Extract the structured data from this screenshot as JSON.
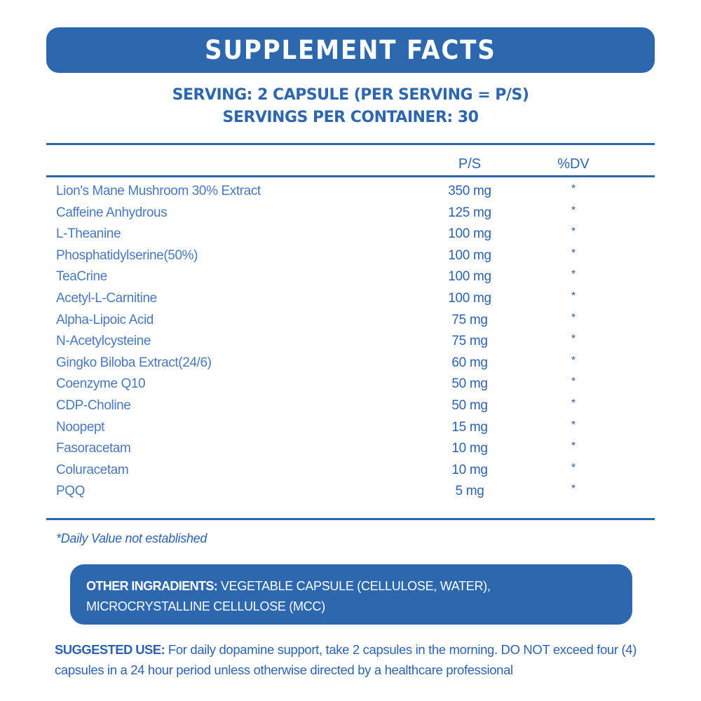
{
  "header": {
    "title": "SUPPLEMENT FACTS"
  },
  "serving": {
    "line1": "SERVING: 2 CAPSULE (PER SERVING = P/S)",
    "line2": "SERVINGS PER CONTAINER: 30"
  },
  "table": {
    "columns": [
      "",
      "P/S",
      "%DV"
    ],
    "rows": [
      {
        "name": "Lion's Mane Mushroom 30% Extract",
        "amount": "350 mg",
        "dv": "*"
      },
      {
        "name": "Caffeine Anhydrous",
        "amount": "125 mg",
        "dv": "*"
      },
      {
        "name": "L-Theanine",
        "amount": "100 mg",
        "dv": "*"
      },
      {
        "name": "Phosphatidylserine(50%)",
        "amount": "100 mg",
        "dv": "*"
      },
      {
        "name": "TeaCrine",
        "amount": "100 mg",
        "dv": "*"
      },
      {
        "name": "Acetyl-L-Carnitine",
        "amount": "100 mg",
        "dv": "*"
      },
      {
        "name": "Alpha-Lipoic Acid",
        "amount": "75 mg",
        "dv": "*"
      },
      {
        "name": "N-Acetylcysteine",
        "amount": "75 mg",
        "dv": "*"
      },
      {
        "name": "Gingko Biloba Extract(24/6)",
        "amount": "60 mg",
        "dv": "*"
      },
      {
        "name": "Coenzyme Q10",
        "amount": "50 mg",
        "dv": "*"
      },
      {
        "name": "CDP-Choline",
        "amount": "50 mg",
        "dv": "*"
      },
      {
        "name": "Noopept",
        "amount": "15 mg",
        "dv": "*"
      },
      {
        "name": "Fasoracetam",
        "amount": "10 mg",
        "dv": "*"
      },
      {
        "name": "Coluracetam",
        "amount": "10 mg",
        "dv": "*"
      },
      {
        "name": "PQQ",
        "amount": "5 mg",
        "dv": "*"
      }
    ]
  },
  "footnote": "*Daily Value not established",
  "other_ingredients": {
    "label": "OTHER INGRADIENTS:",
    "text": " VEGETABLE CAPSULE (CELLULOSE, WATER), MICROCRYSTALLINE CELLULOSE (MCC)"
  },
  "suggested_use": {
    "label": "SUGGESTED USE:",
    "text": " For daily dopamine support, take 2 capsules in the morning. DO NOT exceed four (4) capsules in a 24 hour period unless otherwise directed by a healthcare professional"
  },
  "colors": {
    "brand_blue": "#2d67ad",
    "text_blue": "#4a78bb",
    "background": "#ffffff"
  }
}
